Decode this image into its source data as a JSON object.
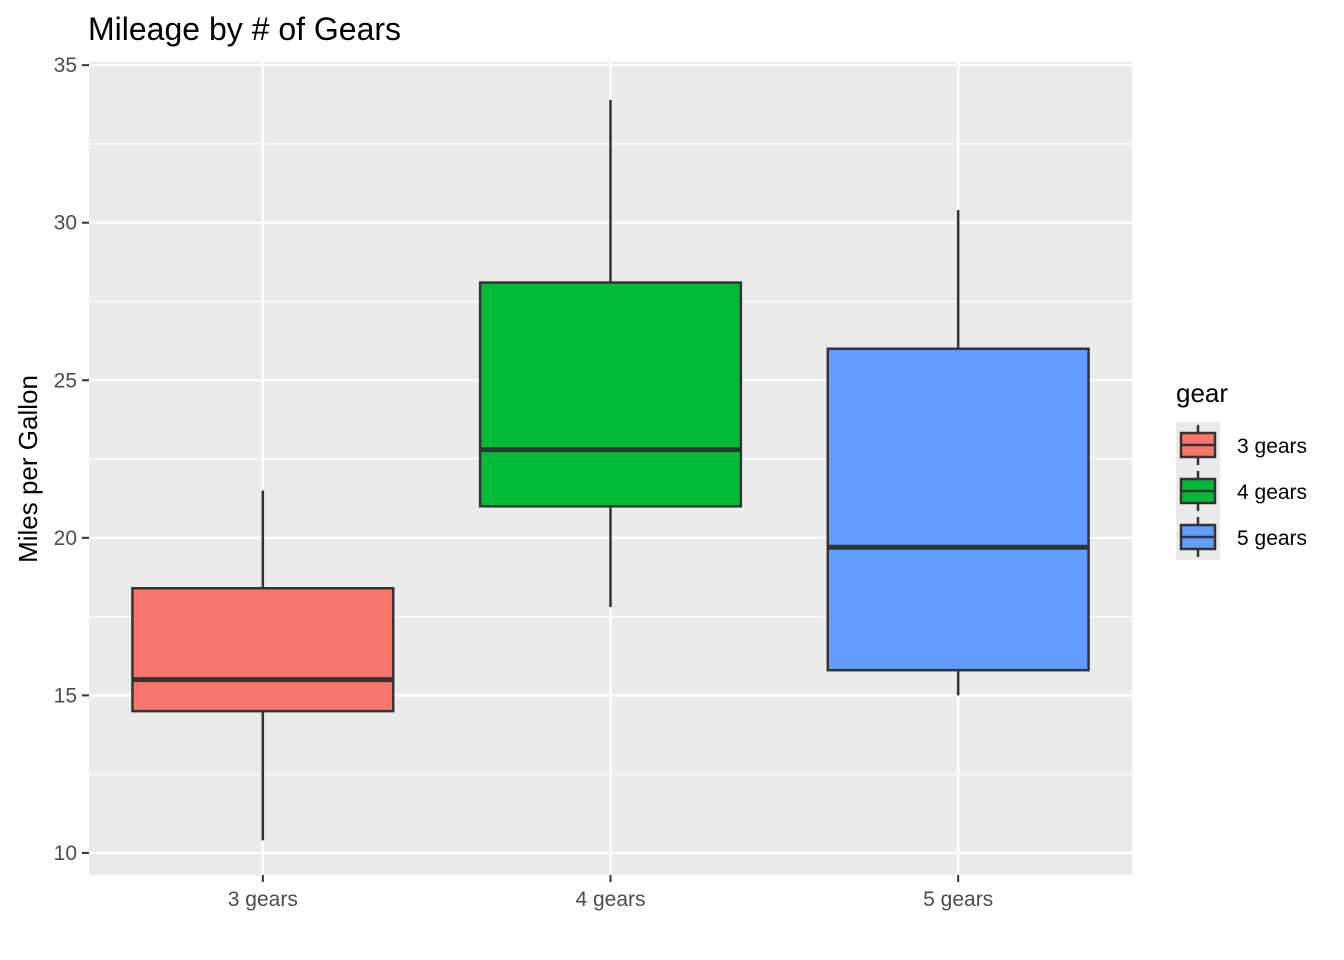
{
  "chart_data": {
    "type": "box",
    "title": "Mileage by # of Gears",
    "xlabel": "",
    "ylabel": "Miles per Gallon",
    "ylim": [
      9.3,
      35.1
    ],
    "y_ticks": [
      10,
      15,
      20,
      25,
      30,
      35
    ],
    "grid": true,
    "categories": [
      "3 gears",
      "4 gears",
      "5 gears"
    ],
    "series": [
      {
        "name": "3 gears",
        "color": "#F8766D",
        "min": 10.4,
        "q1": 14.5,
        "median": 15.5,
        "q3": 18.4,
        "max": 21.5
      },
      {
        "name": "4 gears",
        "color": "#00BA38",
        "min": 17.8,
        "q1": 21.0,
        "median": 22.8,
        "q3": 28.1,
        "max": 33.9
      },
      {
        "name": "5 gears",
        "color": "#619CFF",
        "min": 15.0,
        "q1": 15.8,
        "median": 19.7,
        "q3": 26.0,
        "max": 30.4
      }
    ],
    "legend": {
      "title": "gear",
      "position": "right",
      "items": [
        "3 gears",
        "4 gears",
        "5 gears"
      ]
    }
  }
}
